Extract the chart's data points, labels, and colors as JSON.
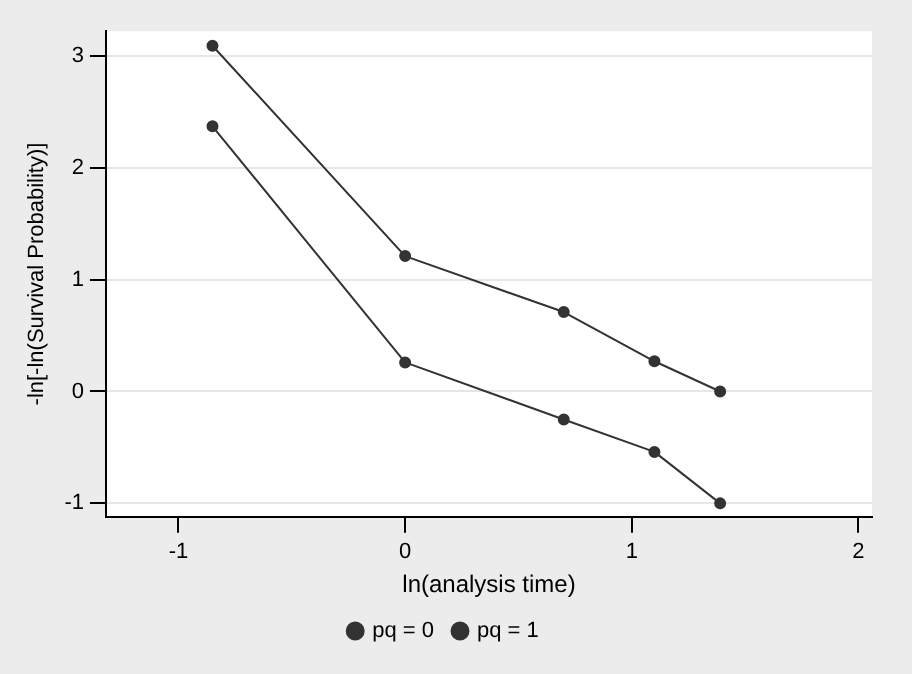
{
  "chart_data": {
    "type": "line",
    "xlabel": "ln(analysis time)",
    "ylabel": "-ln[-ln(Survival Probability)]",
    "x": [
      -0.85,
      0,
      0.7,
      1.1,
      1.39
    ],
    "series": [
      {
        "name": "pq = 0",
        "color": "#333333",
        "values": [
          3.09,
          1.21,
          0.71,
          0.27,
          0
        ]
      },
      {
        "name": "pq = 1",
        "color": "#333333",
        "values": [
          2.37,
          0.26,
          -0.25,
          -0.54,
          -1
        ]
      }
    ],
    "xlim": [
      -1.32,
      2.06
    ],
    "xticks": [
      -1,
      0,
      1,
      2
    ],
    "ylim": [
      -1.12,
      3.22
    ],
    "yticks": [
      -1,
      0,
      1,
      2,
      3
    ],
    "grid": "y",
    "legend": "bottom",
    "marker": "circle",
    "line_style": "solid"
  }
}
